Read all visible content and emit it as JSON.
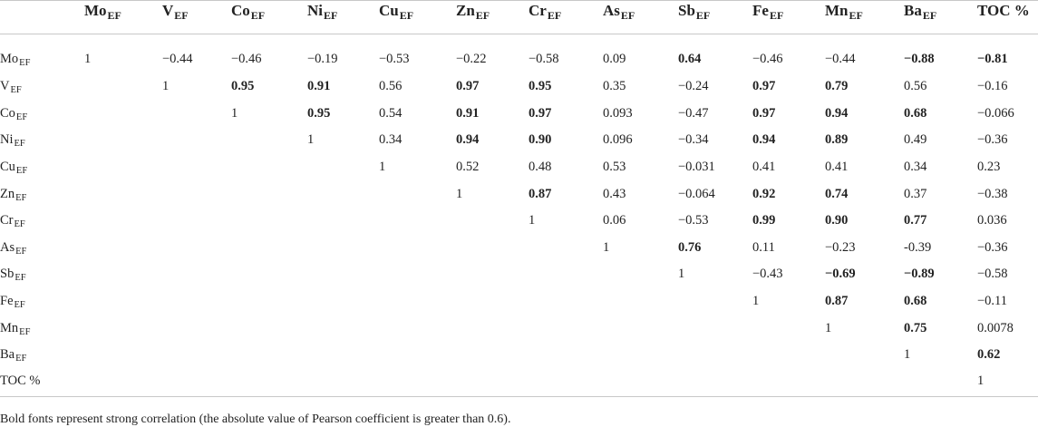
{
  "table": {
    "columns": [
      {
        "main": "Mo",
        "sub": "EF"
      },
      {
        "main": "V",
        "sub": "EF"
      },
      {
        "main": "Co",
        "sub": "EF"
      },
      {
        "main": "Ni",
        "sub": "EF"
      },
      {
        "main": "Cu",
        "sub": "EF"
      },
      {
        "main": "Zn",
        "sub": "EF"
      },
      {
        "main": "Cr",
        "sub": "EF"
      },
      {
        "main": "As",
        "sub": "EF"
      },
      {
        "main": "Sb",
        "sub": "EF"
      },
      {
        "main": "Fe",
        "sub": "EF"
      },
      {
        "main": "Mn",
        "sub": "EF"
      },
      {
        "main": "Ba",
        "sub": "EF"
      },
      {
        "main": "TOC %",
        "sub": ""
      }
    ],
    "rows": [
      {
        "label": {
          "main": "Mo",
          "sub": "EF"
        },
        "start": 0,
        "values": [
          "1",
          "−0.44",
          "−0.46",
          "−0.19",
          "−0.53",
          "−0.22",
          "−0.58",
          "0.09",
          "0.64",
          "−0.46",
          "−0.44",
          "−0.88",
          "−0.81"
        ],
        "bold": [
          false,
          false,
          false,
          false,
          false,
          false,
          false,
          false,
          true,
          false,
          false,
          true,
          true
        ]
      },
      {
        "label": {
          "main": "V",
          "sub": "EF"
        },
        "start": 1,
        "values": [
          "1",
          "0.95",
          "0.91",
          "0.56",
          "0.97",
          "0.95",
          "0.35",
          "−0.24",
          "0.97",
          "0.79",
          "0.56",
          "−0.16"
        ],
        "bold": [
          false,
          true,
          true,
          false,
          true,
          true,
          false,
          false,
          true,
          true,
          false,
          false
        ]
      },
      {
        "label": {
          "main": "Co",
          "sub": "EF"
        },
        "start": 2,
        "values": [
          "1",
          "0.95",
          "0.54",
          "0.91",
          "0.97",
          "0.093",
          "−0.47",
          "0.97",
          "0.94",
          "0.68",
          "−0.066"
        ],
        "bold": [
          false,
          true,
          false,
          true,
          true,
          false,
          false,
          true,
          true,
          true,
          false
        ]
      },
      {
        "label": {
          "main": "Ni",
          "sub": "EF"
        },
        "start": 3,
        "values": [
          "1",
          "0.34",
          "0.94",
          "0.90",
          "0.096",
          "−0.34",
          "0.94",
          "0.89",
          "0.49",
          "−0.36"
        ],
        "bold": [
          false,
          false,
          true,
          true,
          false,
          false,
          true,
          true,
          false,
          false
        ]
      },
      {
        "label": {
          "main": "Cu",
          "sub": "EF"
        },
        "start": 4,
        "values": [
          "1",
          "0.52",
          "0.48",
          "0.53",
          "−0.031",
          "0.41",
          "0.41",
          "0.34",
          "0.23"
        ],
        "bold": [
          false,
          false,
          false,
          false,
          false,
          false,
          false,
          false,
          false
        ]
      },
      {
        "label": {
          "main": "Zn",
          "sub": "EF"
        },
        "start": 5,
        "values": [
          "1",
          "0.87",
          "0.43",
          "−0.064",
          "0.92",
          "0.74",
          "0.37",
          "−0.38"
        ],
        "bold": [
          false,
          true,
          false,
          false,
          true,
          true,
          false,
          false
        ]
      },
      {
        "label": {
          "main": "Cr",
          "sub": "EF"
        },
        "start": 6,
        "values": [
          "1",
          "0.06",
          "−0.53",
          "0.99",
          "0.90",
          "0.77",
          "0.036"
        ],
        "bold": [
          false,
          false,
          false,
          true,
          true,
          true,
          false
        ]
      },
      {
        "label": {
          "main": "As",
          "sub": "EF"
        },
        "start": 7,
        "values": [
          "1",
          "0.76",
          "0.11",
          "−0.23",
          "-0.39",
          "−0.36"
        ],
        "bold": [
          false,
          true,
          false,
          false,
          false,
          false
        ]
      },
      {
        "label": {
          "main": "Sb",
          "sub": "EF"
        },
        "start": 8,
        "values": [
          "1",
          "−0.43",
          "−0.69",
          "−0.89",
          "−0.58"
        ],
        "bold": [
          false,
          false,
          true,
          true,
          false
        ]
      },
      {
        "label": {
          "main": "Fe",
          "sub": "EF"
        },
        "start": 9,
        "values": [
          "1",
          "0.87",
          "0.68",
          "−0.11"
        ],
        "bold": [
          false,
          true,
          true,
          false
        ]
      },
      {
        "label": {
          "main": "Mn",
          "sub": "EF"
        },
        "start": 10,
        "values": [
          "1",
          "0.75",
          "0.0078"
        ],
        "bold": [
          false,
          true,
          false
        ]
      },
      {
        "label": {
          "main": "Ba",
          "sub": "EF"
        },
        "start": 11,
        "values": [
          "1",
          "0.62"
        ],
        "bold": [
          false,
          true
        ]
      },
      {
        "label": {
          "main": "TOC %",
          "sub": ""
        },
        "start": 12,
        "values": [
          "1"
        ],
        "bold": [
          false
        ]
      }
    ],
    "footnote": "Bold fonts represent strong correlation (the absolute value of Pearson coefficient is greater than 0.6)."
  }
}
